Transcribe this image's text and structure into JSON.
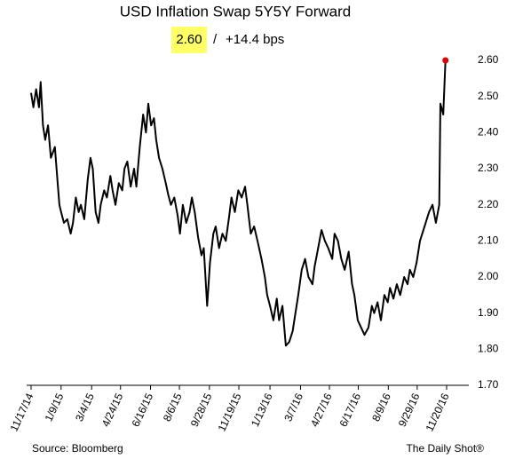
{
  "chart_data": {
    "type": "line",
    "title": "USD Inflation Swap 5Y5Y Forward",
    "annotation": {
      "level": "2.60",
      "separator": "/",
      "change": "+14.4 bps"
    },
    "source": "Source: Bloomberg",
    "credit": "The Daily Shot®",
    "color": "#000000",
    "last_point_color": "#e00000",
    "highlight_color": "#ffff66",
    "grid": false,
    "x": [
      "11/17/14",
      "11/21/14",
      "11/26/14",
      "12/1/14",
      "12/4/14",
      "12/8/14",
      "12/12/14",
      "12/17/14",
      "12/22/14",
      "12/29/14",
      "1/2/15",
      "1/6/15",
      "1/9/15",
      "1/14/15",
      "1/20/15",
      "1/26/15",
      "1/30/15",
      "2/4/15",
      "2/9/15",
      "2/13/15",
      "2/19/15",
      "2/25/15",
      "3/2/15",
      "3/6/15",
      "3/11/15",
      "3/16/15",
      "3/20/15",
      "3/26/15",
      "3/31/15",
      "4/6/15",
      "4/10/15",
      "4/15/15",
      "4/21/15",
      "4/27/15",
      "5/1/15",
      "5/6/15",
      "5/12/15",
      "5/18/15",
      "5/22/15",
      "5/28/15",
      "6/3/15",
      "6/8/15",
      "6/12/15",
      "6/17/15",
      "6/22/15",
      "6/26/15",
      "7/1/15",
      "7/7/15",
      "7/13/15",
      "7/17/15",
      "7/22/15",
      "7/28/15",
      "8/3/15",
      "8/7/15",
      "8/12/15",
      "8/18/15",
      "8/24/15",
      "8/28/15",
      "9/2/15",
      "9/8/15",
      "9/14/15",
      "9/18/15",
      "9/24/15",
      "9/29/15",
      "10/5/15",
      "10/9/15",
      "10/15/15",
      "10/21/15",
      "10/27/15",
      "11/2/15",
      "11/6/15",
      "11/12/15",
      "11/18/15",
      "11/24/15",
      "11/30/15",
      "12/4/15",
      "12/10/15",
      "12/16/15",
      "12/22/15",
      "12/29/15",
      "1/4/16",
      "1/8/16",
      "1/13/16",
      "1/19/16",
      "1/25/16",
      "1/29/16",
      "2/4/16",
      "2/10/16",
      "2/16/16",
      "2/22/16",
      "2/26/16",
      "3/3/16",
      "3/9/16",
      "3/15/16",
      "3/21/16",
      "3/28/16",
      "4/1/16",
      "4/7/16",
      "4/13/16",
      "4/19/16",
      "4/25/16",
      "5/2/16",
      "5/6/16",
      "5/12/16",
      "5/18/16",
      "5/24/16",
      "5/31/16",
      "6/6/16",
      "6/10/16",
      "6/16/16",
      "6/22/16",
      "6/28/16",
      "7/5/16",
      "7/11/16",
      "7/15/16",
      "7/21/16",
      "7/27/16",
      "8/2/16",
      "8/8/16",
      "8/12/16",
      "8/18/16",
      "8/24/16",
      "8/30/16",
      "9/6/16",
      "9/12/16",
      "9/16/16",
      "9/22/16",
      "9/28/16",
      "10/4/16",
      "10/10/16",
      "10/14/16",
      "10/20/16",
      "10/26/16",
      "11/1/16",
      "11/7/16",
      "11/9/16",
      "11/14/16",
      "11/18/16"
    ],
    "values": [
      2.51,
      2.47,
      2.52,
      2.47,
      2.54,
      2.42,
      2.38,
      2.42,
      2.33,
      2.36,
      2.28,
      2.2,
      2.18,
      2.15,
      2.16,
      2.12,
      2.15,
      2.22,
      2.18,
      2.2,
      2.16,
      2.27,
      2.33,
      2.3,
      2.18,
      2.15,
      2.2,
      2.24,
      2.22,
      2.28,
      2.24,
      2.2,
      2.26,
      2.24,
      2.3,
      2.32,
      2.25,
      2.3,
      2.25,
      2.36,
      2.45,
      2.4,
      2.48,
      2.42,
      2.44,
      2.38,
      2.33,
      2.3,
      2.26,
      2.23,
      2.2,
      2.22,
      2.17,
      2.12,
      2.2,
      2.15,
      2.18,
      2.22,
      2.18,
      2.11,
      2.06,
      2.08,
      1.92,
      2.04,
      2.12,
      2.14,
      2.08,
      2.12,
      2.1,
      2.17,
      2.22,
      2.18,
      2.24,
      2.22,
      2.25,
      2.2,
      2.12,
      2.14,
      2.1,
      2.05,
      2.0,
      1.95,
      1.92,
      1.88,
      1.94,
      1.88,
      1.92,
      1.81,
      1.82,
      1.85,
      1.89,
      1.95,
      2.02,
      2.05,
      2.0,
      1.98,
      2.03,
      2.08,
      2.13,
      2.1,
      2.08,
      2.05,
      2.12,
      2.1,
      2.05,
      2.02,
      2.07,
      1.98,
      1.95,
      1.88,
      1.86,
      1.84,
      1.86,
      1.92,
      1.9,
      1.93,
      1.88,
      1.95,
      1.93,
      1.97,
      1.94,
      1.98,
      1.95,
      2.0,
      1.98,
      2.02,
      2.0,
      2.04,
      2.1,
      2.13,
      2.15,
      2.18,
      2.2,
      2.15,
      2.2,
      2.48,
      2.45,
      2.6
    ],
    "xlim": [
      "11/17/14",
      "11/20/16"
    ],
    "xticks": [
      "11/17/14",
      "1/9/15",
      "3/4/15",
      "4/24/15",
      "6/16/15",
      "8/6/15",
      "9/28/15",
      "11/19/15",
      "1/13/16",
      "3/7/16",
      "4/27/16",
      "6/17/16",
      "8/9/16",
      "9/29/16",
      "11/20/16"
    ],
    "ylim": [
      1.7,
      2.6
    ],
    "yticks": [
      {
        "value": 1.7,
        "label": "1.70"
      },
      {
        "value": 1.8,
        "label": "1.80"
      },
      {
        "value": 1.9,
        "label": "1.90"
      },
      {
        "value": 2.0,
        "label": "2.00"
      },
      {
        "value": 2.1,
        "label": "2.10"
      },
      {
        "value": 2.2,
        "label": "2.20"
      },
      {
        "value": 2.3,
        "label": "2.30"
      },
      {
        "value": 2.4,
        "label": "2.40"
      },
      {
        "value": 2.5,
        "label": "2.50"
      },
      {
        "value": 2.6,
        "label": "2.60"
      }
    ]
  }
}
